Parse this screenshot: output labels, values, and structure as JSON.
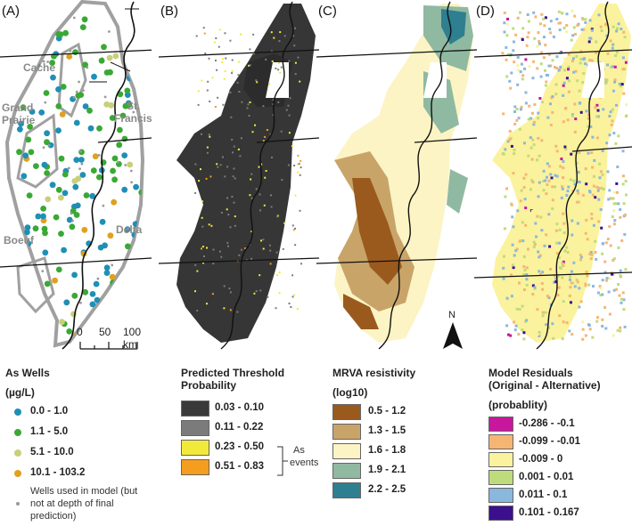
{
  "panels": [
    {
      "label": "(A)"
    },
    {
      "label": "(B)"
    },
    {
      "label": "(C)"
    },
    {
      "label": "(D)"
    }
  ],
  "regions": {
    "cache": "Cache",
    "grand_prairie_1": "Grand",
    "grand_prairie_2": "Prairie",
    "st_francis_1": "St.",
    "st_francis_2": "Francis",
    "boeuf": "Boeuf",
    "delta": "Delta"
  },
  "scale": {
    "t0": "0",
    "t1": "50",
    "t2": "100 km"
  },
  "north": "N",
  "legend_wells": {
    "title": "As Wells",
    "unit": "(µg/L)",
    "items": [
      {
        "label": "0.0 - 1.0",
        "color": "#1f8fb5"
      },
      {
        "label": "1.1 - 5.0",
        "color": "#3aa835"
      },
      {
        "label": "5.1 - 10.0",
        "color": "#c8cf7a"
      },
      {
        "label": "10.1 - 103.2",
        "color": "#e0a020"
      }
    ],
    "note_1": "Wells used in model (but",
    "note_2": "not at depth of final",
    "note_3": "prediction)",
    "note_color": "#9a9a9a"
  },
  "legend_prob": {
    "title_1": "Predicted Threshold",
    "title_2": "Probability",
    "items": [
      {
        "label": "0.03 - 0.10",
        "color": "#3a3a3a"
      },
      {
        "label": "0.11 - 0.22",
        "color": "#7b7b7b"
      },
      {
        "label": "0.23 - 0.50",
        "color": "#f2ea3a"
      },
      {
        "label": "0.51 - 0.83",
        "color": "#f59d1e"
      }
    ],
    "bracket_1": "As",
    "bracket_2": "events"
  },
  "legend_resist": {
    "title_1": "MRVA resistivity",
    "title_2": "(log10)",
    "items": [
      {
        "label": "0.5 - 1.2",
        "color": "#9a5a1e"
      },
      {
        "label": "1.3 - 1.5",
        "color": "#c9a469"
      },
      {
        "label": "1.6 - 1.8",
        "color": "#fcf4c4"
      },
      {
        "label": "1.9 - 2.1",
        "color": "#90b9a1"
      },
      {
        "label": "2.2 - 2.5",
        "color": "#2e7f8f"
      }
    ]
  },
  "legend_resid": {
    "title_1": "Model Residuals",
    "title_2": "(Original - Alternative)",
    "unit": "(probablity)",
    "items": [
      {
        "label": "-0.286 - -0.1",
        "color": "#c8179c"
      },
      {
        "label": "-0.099 - -0.01",
        "color": "#f6b673"
      },
      {
        "label": "-0.009 - 0",
        "color": "#fbf29d"
      },
      {
        "label": "0.001 - 0.01",
        "color": "#bfdc7c"
      },
      {
        "label": "0.011 - 0.1",
        "color": "#8ab8dd"
      },
      {
        "label": "0.101 - 0.167",
        "color": "#3c0f8e"
      }
    ]
  }
}
